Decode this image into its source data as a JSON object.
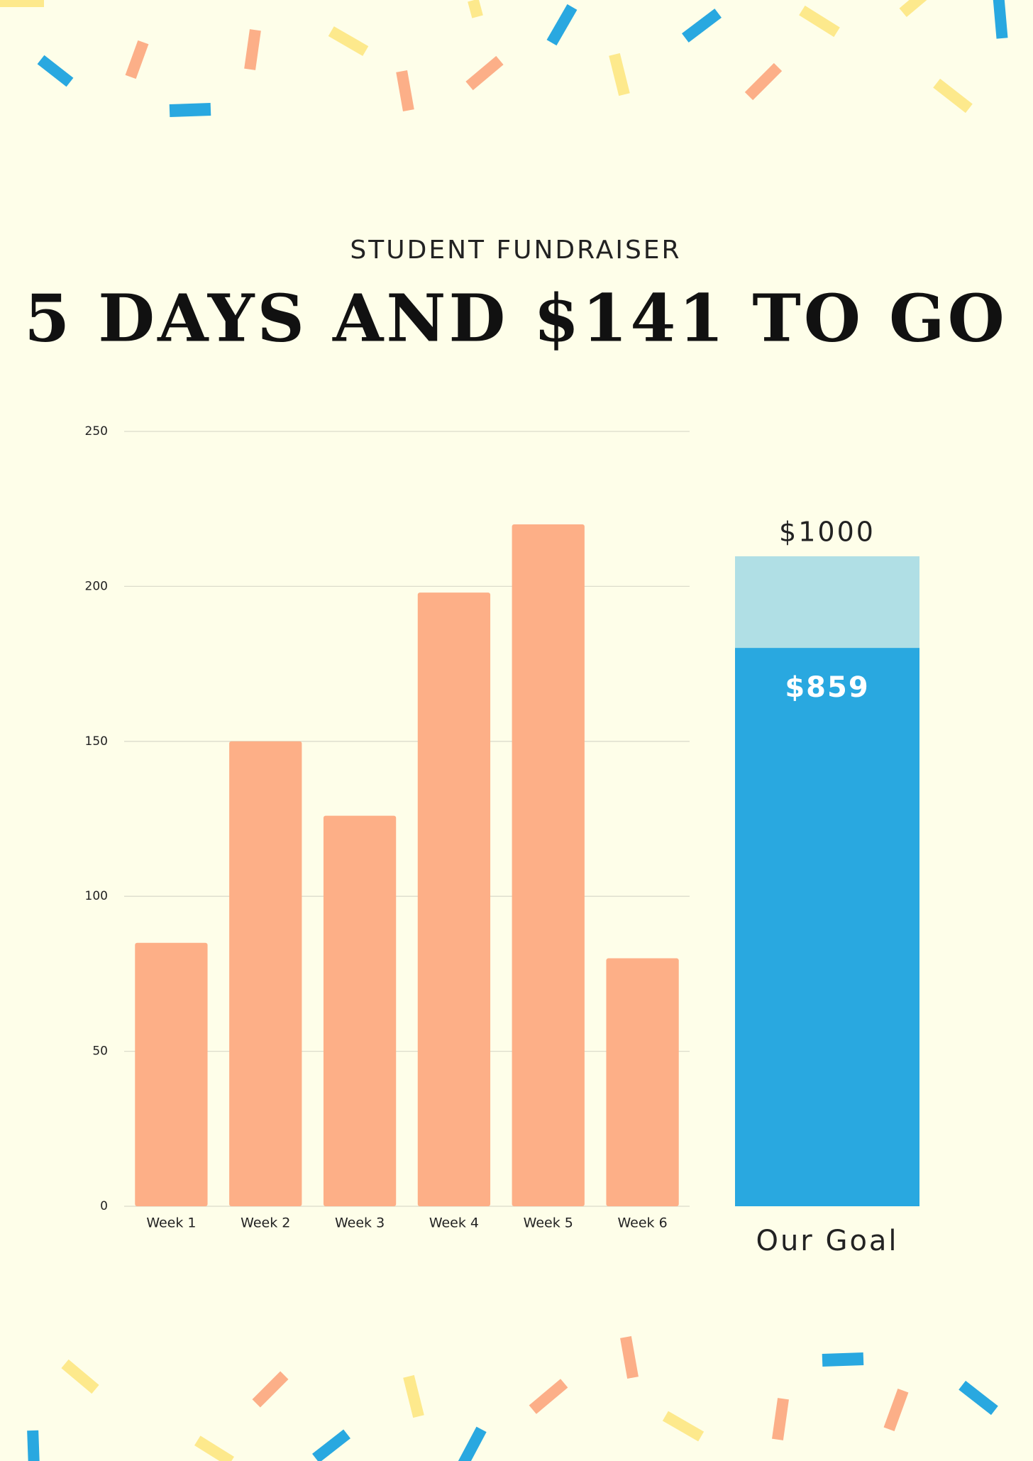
{
  "header": {
    "subtitle": "STUDENT FUNDRAISER",
    "title": "5 DAYS AND $141 TO GO"
  },
  "chart_data": [
    {
      "type": "bar",
      "categories": [
        "Week 1",
        "Week 2",
        "Week 3",
        "Week 4",
        "Week 5",
        "Week 6"
      ],
      "values": [
        85,
        150,
        126,
        198,
        220,
        80
      ],
      "color": "#fdaf87",
      "ylim": [
        0,
        250
      ],
      "yticks": [
        0,
        50,
        100,
        150,
        200,
        250
      ],
      "grid": true
    },
    {
      "type": "progress",
      "category": "Our Goal",
      "goal": 1000,
      "raised": 859,
      "value_labels": {
        "goal": "$1000",
        "raised": "$859"
      },
      "goal_color": "#b0dfe5",
      "raised_color": "#29a8e0"
    }
  ]
}
